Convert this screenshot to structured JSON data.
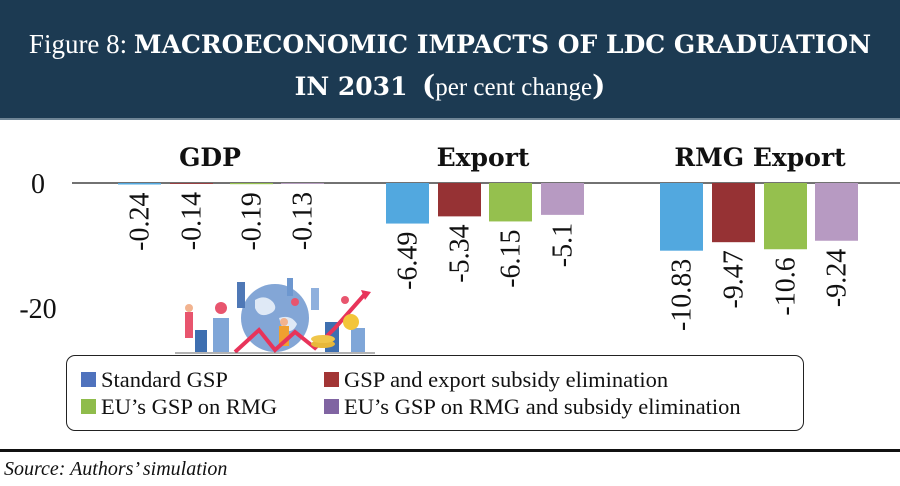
{
  "header": {
    "figure_prefix": "Figure 8: ",
    "title_line1": "MACROECONOMIC IMPACTS OF LDC GRADUATION",
    "title_line2": "IN 2031",
    "paren_open": "(",
    "unit": "per cent change",
    "paren_close": ")"
  },
  "colors": {
    "header_bg": "#1c3a52",
    "standard_gsp": "#52a8df",
    "gsp_export_subsidy": "#963234",
    "eu_gsp_rmg": "#95c04e",
    "eu_gsp_rmg_subsidy": "#b79ac2"
  },
  "chart_data": {
    "type": "bar",
    "title": "MACROECONOMIC IMPACTS OF LDC GRADUATION IN 2031 (per cent change)",
    "xlabel": "",
    "ylabel": "",
    "categories": [
      "GDP",
      "Export",
      "RMG Export"
    ],
    "series": [
      {
        "name": "Standard GSP",
        "color": "#52a8df",
        "values": [
          -0.24,
          -6.49,
          -10.83
        ],
        "labels": [
          "-0.24",
          "-6.49",
          "-10.83"
        ]
      },
      {
        "name": "GSP and export subsidy elimination",
        "color": "#963234",
        "values": [
          -0.14,
          -5.34,
          -9.47
        ],
        "labels": [
          "-0.14",
          "-5.34",
          "-9.47"
        ]
      },
      {
        "name": "EU’s GSP on RMG",
        "color": "#95c04e",
        "values": [
          -0.19,
          -6.15,
          -10.6
        ],
        "labels": [
          "-0.19",
          "-6.15",
          "-10.6"
        ]
      },
      {
        "name": "EU’s GSP on RMG and subsidy elimination",
        "color": "#b79ac2",
        "values": [
          -0.13,
          -5.1,
          -9.24
        ],
        "labels": [
          "-0.13",
          "-5.1",
          "-9.24"
        ]
      }
    ],
    "y_ticks": [
      "0",
      "-20"
    ],
    "y_tick_values": [
      0,
      -20
    ],
    "ylim": [
      -25,
      0
    ],
    "grid": false,
    "legend_position": "bottom",
    "legend_layout": "2 columns"
  },
  "legend": {
    "items": [
      {
        "label": "Standard GSP",
        "swatch": "#4f72bd"
      },
      {
        "label": "GSP and export subsidy elimination",
        "swatch": "#a23535"
      },
      {
        "label": "EU’s GSP on RMG",
        "swatch": "#8fbc4b"
      },
      {
        "label": "EU’s GSP on RMG and subsidy elimination",
        "swatch": "#8064a2"
      }
    ]
  },
  "illustration": {
    "icon": "global-economy-illustration"
  },
  "source": "Source: Authors’ simulation"
}
